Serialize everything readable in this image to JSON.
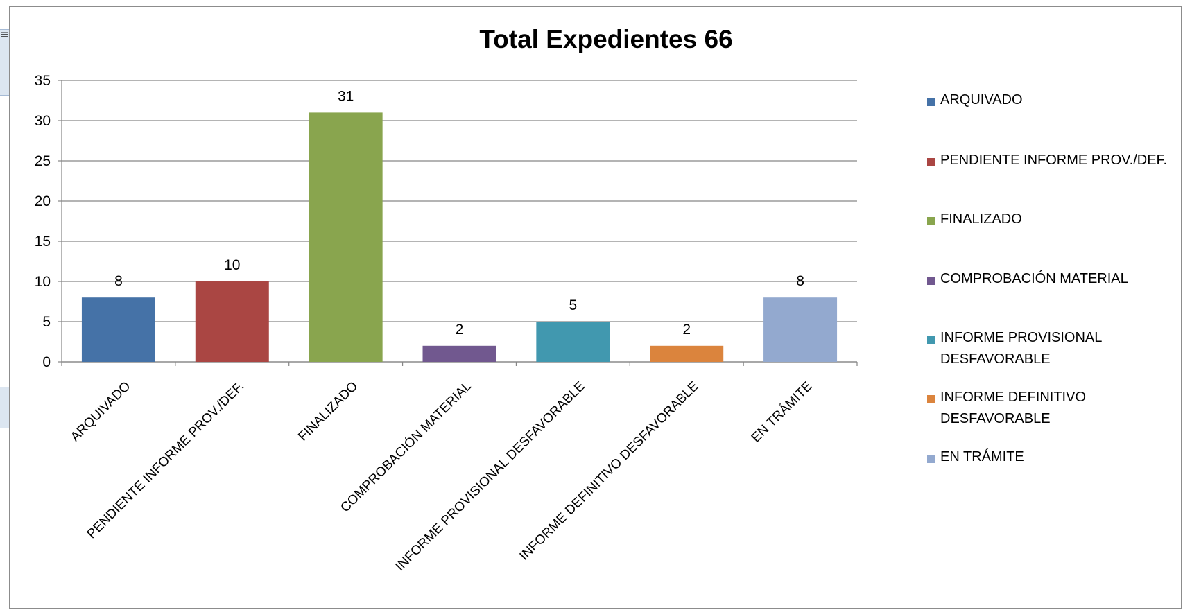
{
  "chart_data": {
    "type": "bar",
    "title": "Total Expedientes 66",
    "xlabel": "",
    "ylabel": "",
    "ylim": [
      0,
      35
    ],
    "yticks": [
      0,
      5,
      10,
      15,
      20,
      25,
      30,
      35
    ],
    "grid": true,
    "legend_position": "right",
    "categories": [
      "ARQUIVADO",
      "PENDIENTE INFORME PROV./DEF.",
      "FINALIZADO",
      "COMPROBACIÓN MATERIAL",
      "INFORME PROVISIONAL DESFAVORABLE",
      "INFORME DEFINITIVO DESFAVORABLE",
      "EN TRÁMITE"
    ],
    "values": [
      8,
      10,
      31,
      2,
      5,
      2,
      8
    ],
    "data_labels": [
      "8",
      "10",
      "31",
      "2",
      "5",
      "2",
      "8"
    ],
    "colors": [
      "#4572a7",
      "#aa4643",
      "#89a54e",
      "#71588f",
      "#4198af",
      "#db843d",
      "#93a9cf"
    ],
    "legend": [
      "ARQUIVADO",
      "PENDIENTE INFORME PROV./DEF.",
      "FINALIZADO",
      "COMPROBACIÓN MATERIAL",
      "INFORME PROVISIONAL DESFAVORABLE",
      "INFORME DEFINITIVO DESFAVORABLE",
      "EN TRÁMITE"
    ]
  },
  "background": {
    "sheet_fragment_glyph": "≡"
  }
}
